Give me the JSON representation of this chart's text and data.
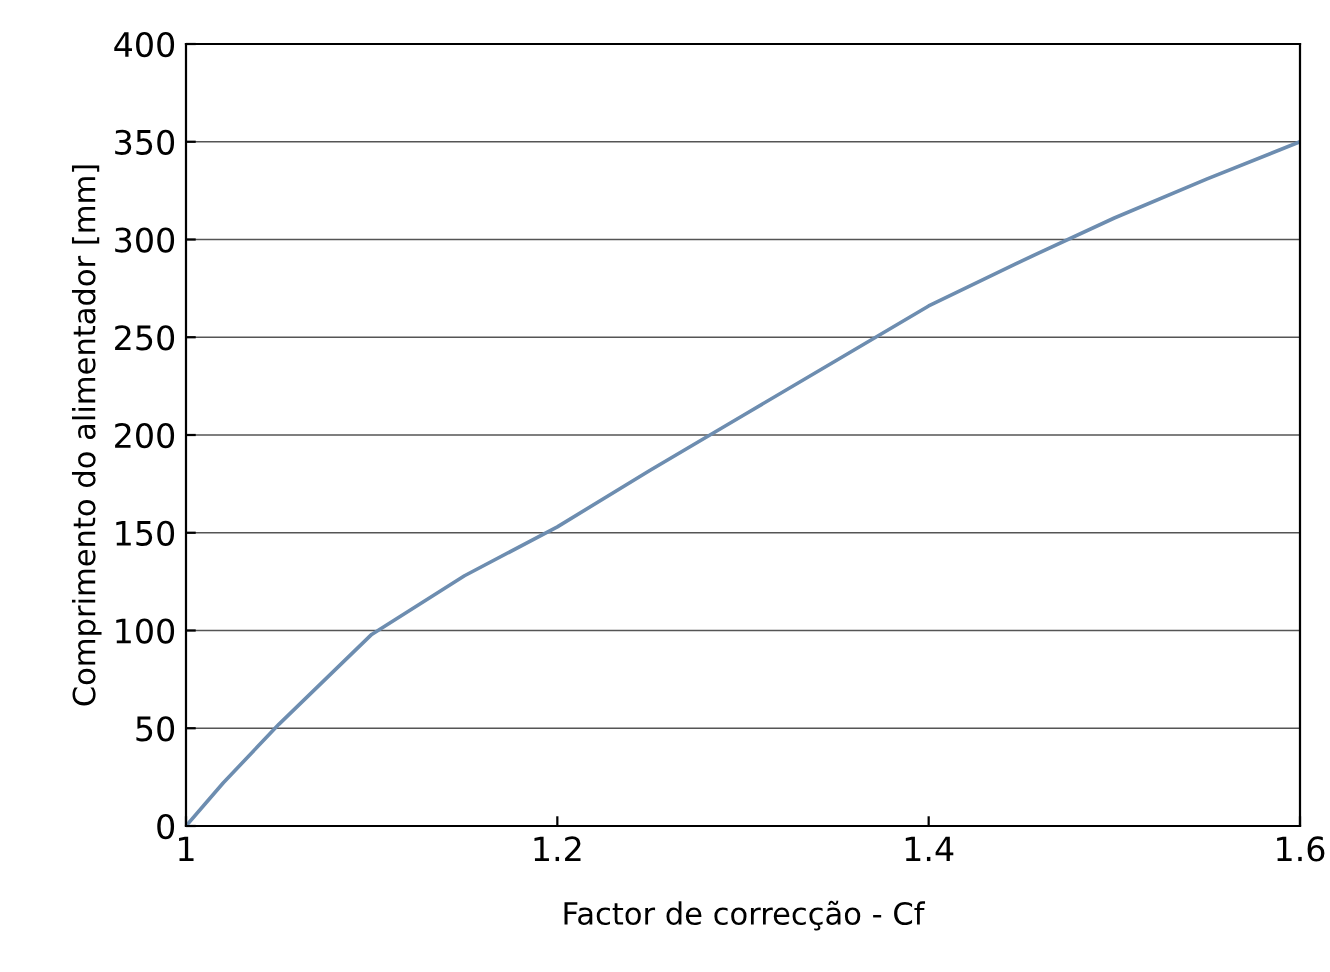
{
  "chart_data": {
    "type": "line",
    "xlabel": "Factor de correcção - Cf",
    "ylabel": "Comprimento do alimentador [mm]",
    "x": [
      1.0,
      1.01,
      1.02,
      1.05,
      1.1,
      1.15,
      1.2,
      1.25,
      1.3,
      1.35,
      1.4,
      1.45,
      1.5,
      1.55,
      1.6
    ],
    "series": [
      {
        "color": "#6d8db0",
        "values": [
          0,
          11,
          22,
          52,
          98,
          128,
          153,
          182,
          210,
          238,
          266,
          289,
          311,
          331,
          350
        ]
      }
    ],
    "xlim": [
      1.0,
      1.6
    ],
    "xticks": [
      {
        "value": 1.0,
        "label": "1"
      },
      1.2,
      1.4,
      1.6
    ],
    "ylim": [
      0,
      400
    ],
    "yticks": [
      0,
      50,
      100,
      150,
      200,
      250,
      300,
      350,
      400
    ],
    "grid": "y",
    "marker": "none",
    "line_style": "solid"
  }
}
